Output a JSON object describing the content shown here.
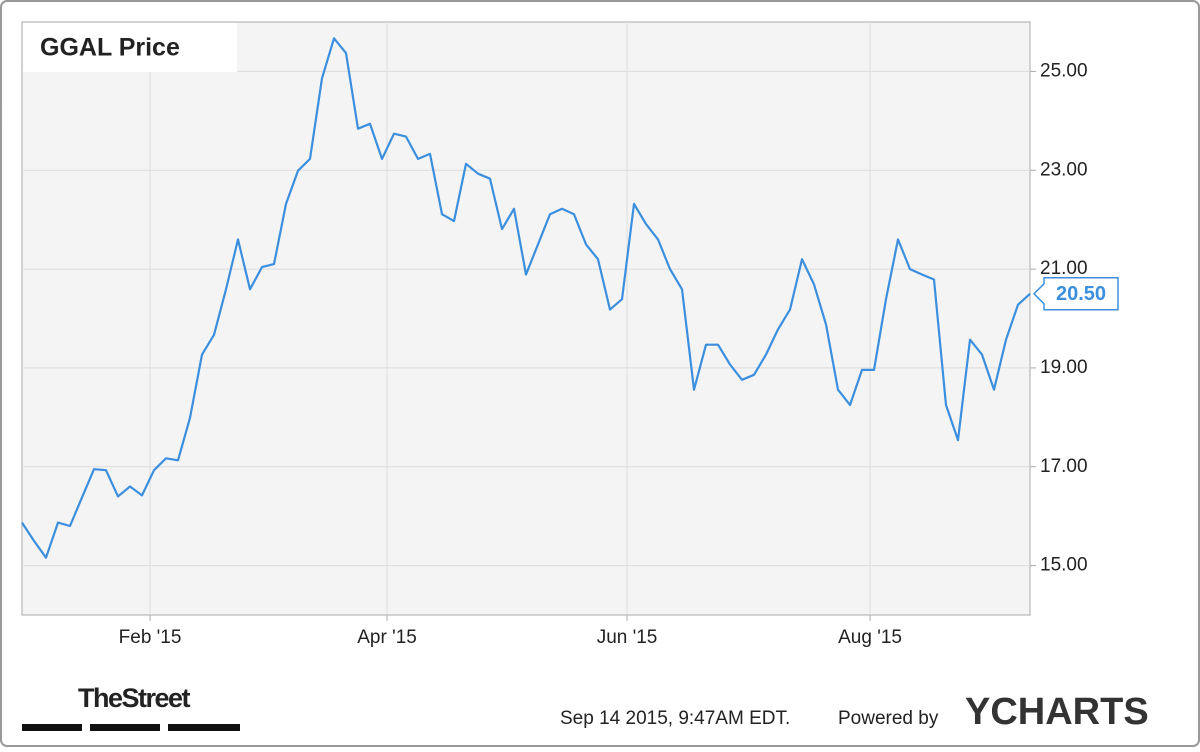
{
  "chart_data": {
    "type": "line",
    "title": "GGAL Price",
    "series": [
      {
        "name": "GGAL",
        "color": "#3b8fde",
        "values": [
          15.87,
          15.5,
          15.16,
          15.87,
          15.8,
          16.38,
          16.95,
          16.93,
          16.4,
          16.6,
          16.42,
          16.93,
          17.17,
          17.13,
          17.99,
          19.27,
          19.67,
          20.59,
          21.6,
          20.59,
          21.04,
          21.1,
          22.32,
          22.99,
          23.23,
          24.86,
          25.67,
          25.37,
          23.84,
          23.94,
          23.23,
          23.74,
          23.68,
          23.23,
          23.33,
          22.11,
          21.97,
          23.13,
          22.93,
          22.83,
          21.81,
          22.22,
          20.89,
          21.5,
          22.11,
          22.22,
          22.11,
          21.5,
          21.2,
          20.18,
          20.39,
          22.32,
          21.91,
          21.6,
          21,
          20.59,
          18.56,
          19.47,
          19.47,
          19.07,
          18.76,
          18.86,
          19.27,
          19.78,
          20.18,
          21.2,
          20.69,
          19.88,
          18.56,
          18.25,
          18.96,
          18.96,
          20.39,
          21.6,
          21,
          20.89,
          20.79,
          18.25,
          17.54,
          19.57,
          19.27,
          18.56,
          19.57,
          20.28,
          20.5
        ]
      }
    ],
    "last_value": {
      "value": 20.5,
      "label": "20.50"
    },
    "ylim": [
      14,
      26
    ],
    "yticks": [
      {
        "value": 15,
        "label": "15.00"
      },
      {
        "value": 17,
        "label": "17.00"
      },
      {
        "value": 19,
        "label": "19.00"
      },
      {
        "value": 21,
        "label": "21.00"
      },
      {
        "value": 23,
        "label": "23.00"
      },
      {
        "value": 25,
        "label": "25.00"
      }
    ],
    "xticks": [
      {
        "value": 10.67,
        "label": "Feb '15"
      },
      {
        "value": 30.42,
        "label": "Apr '15"
      },
      {
        "value": 50.42,
        "label": "Jun '15"
      },
      {
        "value": 70.67,
        "label": "Aug '15"
      }
    ],
    "grid": true,
    "footer": {
      "source_logo": "TheStreet",
      "timestamp": "Sep 14 2015, 9:47AM EDT.",
      "powered_by": "Powered by",
      "brand": "YCHARTS"
    }
  }
}
